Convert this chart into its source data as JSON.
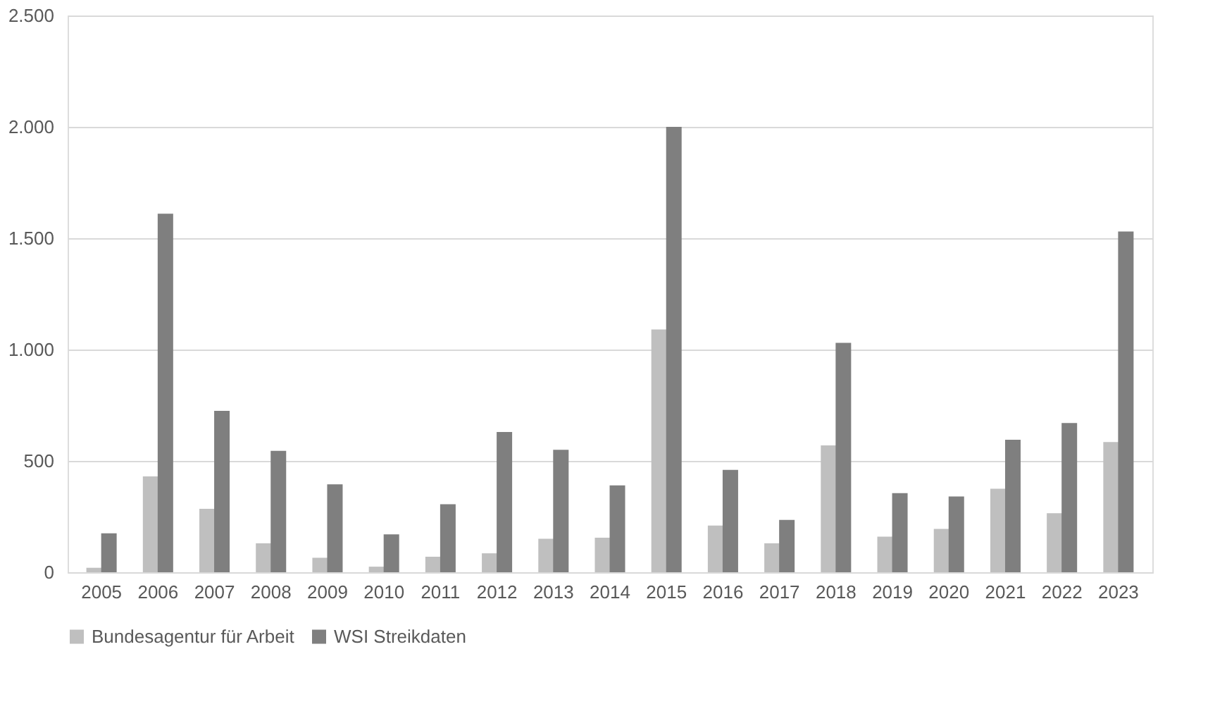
{
  "chart_data": {
    "type": "bar",
    "categories": [
      "2005",
      "2006",
      "2007",
      "2008",
      "2009",
      "2010",
      "2011",
      "2012",
      "2013",
      "2014",
      "2015",
      "2016",
      "2017",
      "2018",
      "2019",
      "2020",
      "2021",
      "2022",
      "2023"
    ],
    "series": [
      {
        "name": "Bundesagentur für Arbeit",
        "color": "#bfbfbf",
        "values": [
          20,
          430,
          285,
          130,
          65,
          25,
          70,
          85,
          150,
          155,
          1090,
          210,
          130,
          570,
          160,
          195,
          375,
          265,
          585
        ]
      },
      {
        "name": "WSI Streikdaten",
        "color": "#7f7f7f",
        "values": [
          175,
          1610,
          725,
          545,
          395,
          170,
          305,
          630,
          550,
          390,
          2000,
          460,
          235,
          1030,
          355,
          340,
          595,
          670,
          1530
        ]
      }
    ],
    "ylim": [
      0,
      2500
    ],
    "yticks": [
      0,
      {
        "value": 500,
        "label": "500"
      },
      {
        "value": 1000,
        "label": "1.000"
      },
      {
        "value": 1500,
        "label": "1.500"
      },
      {
        "value": 2000,
        "label": "2.000"
      },
      {
        "value": 2500,
        "label": "2.500"
      }
    ],
    "grid": "y",
    "legend": "bottom"
  }
}
